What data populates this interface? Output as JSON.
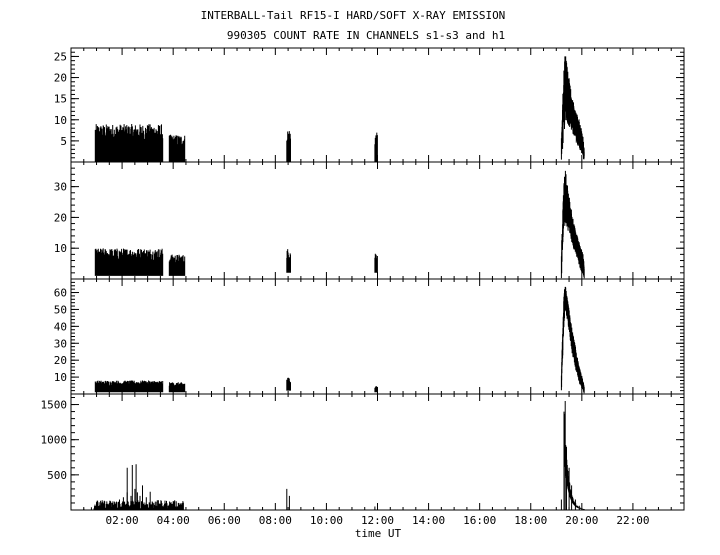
{
  "title_line1": "INTERBALL-Tail RF15-I HARD/SOFT X-RAY EMISSION",
  "title_line2": "990305  COUNT RATE IN CHANNELS s1-s3 and h1",
  "chart_data": {
    "type": "line",
    "xlabel": "time UT",
    "xlim_hours": [
      0,
      24
    ],
    "x_ticks": [
      "02:00",
      "04:00",
      "06:00",
      "08:00",
      "10:00",
      "12:00",
      "14:00",
      "16:00",
      "18:00",
      "20:00",
      "22:00"
    ],
    "x_tick_hours": [
      2,
      4,
      6,
      8,
      10,
      12,
      14,
      16,
      18,
      20,
      22
    ],
    "grid": false,
    "legend": "none",
    "panels": [
      {
        "channel": "s1",
        "ylim": [
          0,
          27
        ],
        "y_ticks": [
          5,
          10,
          15,
          20,
          25
        ],
        "y_tick_labels": [
          "5",
          "10",
          "15",
          "20",
          "25"
        ],
        "segments": [
          {
            "start": 0.95,
            "end": 3.6,
            "low": 0,
            "high": 9
          },
          {
            "start": 3.85,
            "end": 4.45,
            "low": 0,
            "high": 6.5
          },
          {
            "start": 8.45,
            "end": 8.6,
            "low": 0,
            "high": 8
          },
          {
            "start": 11.9,
            "end": 12.0,
            "low": 0,
            "high": 7
          }
        ],
        "event": {
          "start": 19.2,
          "end": 20.1,
          "profile": [
            [
              19.2,
              0,
              6
            ],
            [
              19.3,
              6,
              23
            ],
            [
              19.35,
              10,
              26
            ],
            [
              19.45,
              9,
              22
            ],
            [
              19.6,
              7,
              16
            ],
            [
              19.75,
              5,
              12
            ],
            [
              19.9,
              3,
              10
            ],
            [
              20.05,
              1,
              6
            ],
            [
              20.1,
              0,
              3
            ]
          ]
        }
      },
      {
        "channel": "s2",
        "ylim": [
          0,
          38
        ],
        "y_ticks": [
          10,
          20,
          30
        ],
        "y_tick_labels": [
          "10",
          "20",
          "30"
        ],
        "segments": [
          {
            "start": 0.95,
            "end": 3.6,
            "low": 1,
            "high": 10
          },
          {
            "start": 3.85,
            "end": 4.45,
            "low": 1,
            "high": 8
          },
          {
            "start": 8.45,
            "end": 8.6,
            "low": 2,
            "high": 10
          },
          {
            "start": 11.9,
            "end": 12.0,
            "low": 2,
            "high": 9
          }
        ],
        "event": {
          "start": 19.2,
          "end": 20.1,
          "profile": [
            [
              19.2,
              0,
              10
            ],
            [
              19.3,
              15,
              33
            ],
            [
              19.35,
              18,
              36
            ],
            [
              19.45,
              16,
              30
            ],
            [
              19.6,
              12,
              22
            ],
            [
              19.75,
              8,
              16
            ],
            [
              19.9,
              4,
              12
            ],
            [
              20.05,
              1,
              8
            ],
            [
              20.1,
              0,
              4
            ]
          ]
        }
      },
      {
        "channel": "s3",
        "ylim": [
          0,
          68
        ],
        "y_ticks": [
          10,
          20,
          30,
          40,
          50,
          60
        ],
        "y_tick_labels": [
          "10",
          "20",
          "30",
          "40",
          "50",
          "60"
        ],
        "segments": [
          {
            "start": 0.95,
            "end": 3.6,
            "low": 1,
            "high": 8
          },
          {
            "start": 3.85,
            "end": 4.45,
            "low": 1,
            "high": 7
          },
          {
            "start": 8.45,
            "end": 8.6,
            "low": 2,
            "high": 10
          },
          {
            "start": 11.9,
            "end": 12.0,
            "low": 1,
            "high": 5
          }
        ],
        "event": {
          "start": 19.2,
          "end": 20.1,
          "profile": [
            [
              19.2,
              0,
              15
            ],
            [
              19.3,
              40,
              60
            ],
            [
              19.35,
              50,
              65
            ],
            [
              19.45,
              42,
              55
            ],
            [
              19.6,
              25,
              40
            ],
            [
              19.75,
              15,
              28
            ],
            [
              19.9,
              6,
              16
            ],
            [
              20.05,
              2,
              8
            ],
            [
              20.1,
              0,
              4
            ]
          ]
        }
      },
      {
        "channel": "h1",
        "ylim": [
          0,
          1650
        ],
        "y_ticks": [
          500,
          1000,
          1500
        ],
        "y_tick_labels": [
          "500",
          "1000",
          "1500"
        ],
        "spikes": [
          [
            0.5,
            20
          ],
          [
            0.8,
            40
          ],
          [
            1.2,
            60
          ],
          [
            1.5,
            100
          ],
          [
            1.7,
            120
          ],
          [
            1.9,
            150
          ],
          [
            2.05,
            180
          ],
          [
            2.2,
            250
          ],
          [
            2.35,
            200
          ],
          [
            2.5,
            300
          ],
          [
            2.6,
            250
          ],
          [
            2.7,
            200
          ],
          [
            2.8,
            350
          ],
          [
            2.95,
            180
          ],
          [
            3.1,
            260
          ],
          [
            3.3,
            120
          ],
          [
            3.5,
            90
          ],
          [
            3.8,
            60
          ],
          [
            4.1,
            50
          ],
          [
            4.3,
            40
          ],
          [
            8.45,
            300
          ],
          [
            8.55,
            200
          ],
          [
            11.9,
            50
          ],
          [
            19.2,
            150
          ],
          [
            19.3,
            1400
          ],
          [
            19.35,
            1550
          ],
          [
            19.4,
            900
          ],
          [
            19.5,
            600
          ],
          [
            19.6,
            350
          ],
          [
            19.75,
            150
          ],
          [
            19.9,
            60
          ],
          [
            20.1,
            10
          ]
        ],
        "peaks": [
          [
            2.2,
            600
          ],
          [
            2.4,
            640
          ],
          [
            2.55,
            650
          ]
        ]
      }
    ]
  }
}
